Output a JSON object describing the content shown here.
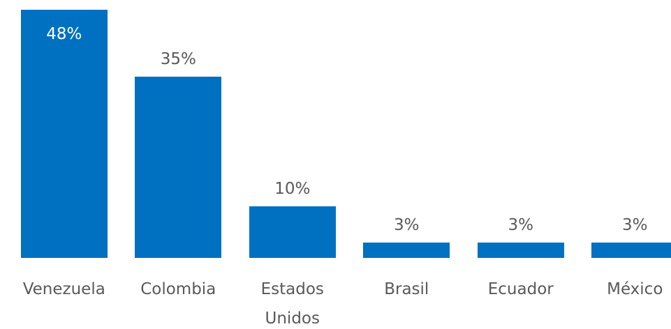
{
  "chart_data": {
    "type": "bar",
    "categories": [
      "Venezuela",
      "Colombia",
      "Estados Unidos",
      "Brasil",
      "Ecuador",
      "México"
    ],
    "values": [
      48,
      35,
      10,
      3,
      3,
      3
    ],
    "value_labels": [
      "48%",
      "35%",
      "10%",
      "3%",
      "3%",
      "3%"
    ],
    "color": "#0070c0"
  }
}
